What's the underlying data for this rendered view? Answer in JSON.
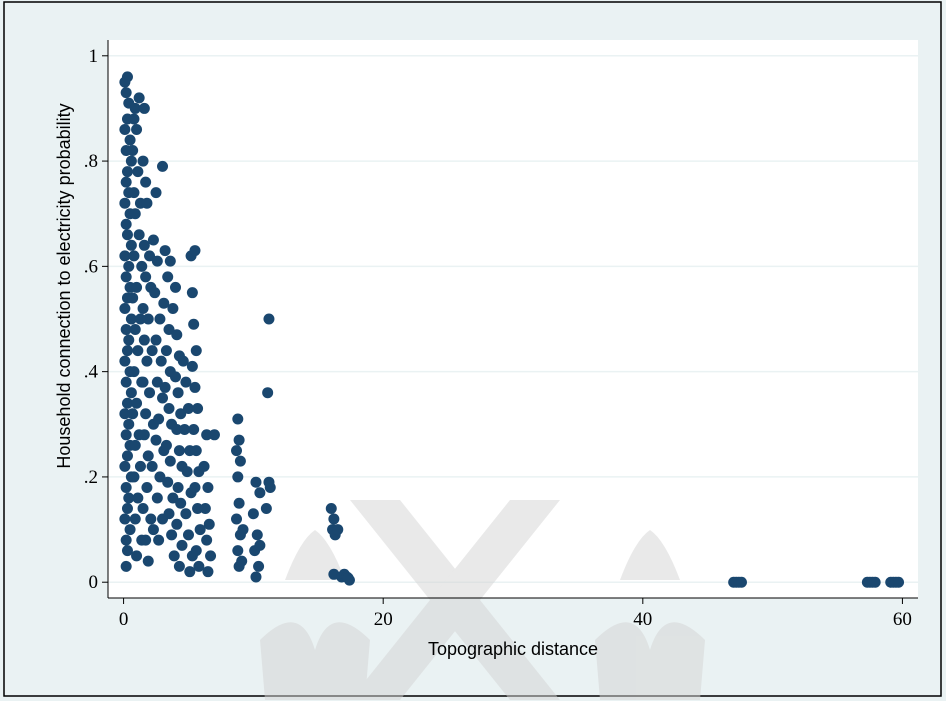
{
  "chart_data": {
    "type": "scatter",
    "title": "",
    "xlabel": "Topographic distance",
    "ylabel": "Household connection to electricity probability",
    "xlim": [
      -1.2,
      61.2
    ],
    "ylim": [
      -0.03,
      1.03
    ],
    "xticks": [
      0,
      20,
      40,
      60
    ],
    "xtick_labels": [
      "0",
      "20",
      "40",
      "60"
    ],
    "yticks": [
      0,
      0.2,
      0.4,
      0.6,
      0.8,
      1
    ],
    "ytick_labels": [
      "0",
      ".2",
      ".4",
      ".6",
      ".8",
      "1"
    ],
    "grid": true,
    "colors": {
      "marker": "#1a476f",
      "background": "#eaf2f3",
      "plot_background": "#ffffff",
      "grid": "#eaf2f3",
      "watermark": "#d4d4d4"
    },
    "points": [
      [
        0.1,
        0.95
      ],
      [
        0.2,
        0.93
      ],
      [
        0.3,
        0.96
      ],
      [
        0.4,
        0.91
      ],
      [
        0.3,
        0.88
      ],
      [
        0.1,
        0.86
      ],
      [
        0.5,
        0.84
      ],
      [
        0.2,
        0.82
      ],
      [
        0.6,
        0.8
      ],
      [
        0.3,
        0.78
      ],
      [
        0.2,
        0.76
      ],
      [
        0.4,
        0.74
      ],
      [
        0.1,
        0.72
      ],
      [
        0.5,
        0.7
      ],
      [
        0.2,
        0.68
      ],
      [
        0.3,
        0.66
      ],
      [
        0.6,
        0.64
      ],
      [
        0.1,
        0.62
      ],
      [
        0.4,
        0.6
      ],
      [
        0.2,
        0.58
      ],
      [
        0.5,
        0.56
      ],
      [
        0.3,
        0.54
      ],
      [
        0.1,
        0.52
      ],
      [
        0.6,
        0.5
      ],
      [
        0.2,
        0.48
      ],
      [
        0.4,
        0.46
      ],
      [
        0.3,
        0.44
      ],
      [
        0.1,
        0.42
      ],
      [
        0.5,
        0.4
      ],
      [
        0.2,
        0.38
      ],
      [
        0.6,
        0.36
      ],
      [
        0.3,
        0.34
      ],
      [
        0.1,
        0.32
      ],
      [
        0.4,
        0.3
      ],
      [
        0.2,
        0.28
      ],
      [
        0.5,
        0.26
      ],
      [
        0.3,
        0.24
      ],
      [
        0.1,
        0.22
      ],
      [
        0.6,
        0.2
      ],
      [
        0.2,
        0.18
      ],
      [
        0.4,
        0.16
      ],
      [
        0.3,
        0.14
      ],
      [
        0.1,
        0.12
      ],
      [
        0.5,
        0.1
      ],
      [
        0.2,
        0.08
      ],
      [
        0.3,
        0.06
      ],
      [
        0.2,
        0.03
      ],
      [
        0.8,
        0.88
      ],
      [
        0.9,
        0.9
      ],
      [
        1.2,
        0.92
      ],
      [
        1.0,
        0.86
      ],
      [
        0.7,
        0.82
      ],
      [
        1.1,
        0.78
      ],
      [
        0.8,
        0.74
      ],
      [
        1.3,
        0.72
      ],
      [
        0.9,
        0.7
      ],
      [
        1.2,
        0.66
      ],
      [
        0.8,
        0.62
      ],
      [
        1.4,
        0.6
      ],
      [
        1.0,
        0.56
      ],
      [
        0.7,
        0.54
      ],
      [
        1.3,
        0.5
      ],
      [
        0.9,
        0.48
      ],
      [
        1.1,
        0.44
      ],
      [
        0.8,
        0.4
      ],
      [
        1.4,
        0.38
      ],
      [
        1.0,
        0.34
      ],
      [
        0.7,
        0.32
      ],
      [
        1.2,
        0.28
      ],
      [
        0.9,
        0.26
      ],
      [
        1.3,
        0.22
      ],
      [
        0.8,
        0.2
      ],
      [
        1.1,
        0.16
      ],
      [
        0.9,
        0.12
      ],
      [
        1.4,
        0.08
      ],
      [
        1.0,
        0.05
      ],
      [
        1.6,
        0.9
      ],
      [
        1.7,
        0.76
      ],
      [
        1.5,
        0.8
      ],
      [
        1.8,
        0.72
      ],
      [
        1.6,
        0.64
      ],
      [
        2.0,
        0.62
      ],
      [
        1.7,
        0.58
      ],
      [
        2.1,
        0.56
      ],
      [
        1.5,
        0.52
      ],
      [
        1.9,
        0.5
      ],
      [
        1.6,
        0.46
      ],
      [
        2.2,
        0.44
      ],
      [
        1.8,
        0.42
      ],
      [
        1.5,
        0.38
      ],
      [
        2.0,
        0.36
      ],
      [
        1.7,
        0.32
      ],
      [
        2.3,
        0.3
      ],
      [
        1.6,
        0.28
      ],
      [
        1.9,
        0.24
      ],
      [
        2.2,
        0.22
      ],
      [
        1.8,
        0.18
      ],
      [
        1.5,
        0.14
      ],
      [
        2.1,
        0.12
      ],
      [
        1.7,
        0.08
      ],
      [
        1.9,
        0.04
      ],
      [
        2.3,
        0.1
      ],
      [
        2.5,
        0.74
      ],
      [
        2.3,
        0.65
      ],
      [
        2.6,
        0.61
      ],
      [
        2.4,
        0.55
      ],
      [
        2.8,
        0.5
      ],
      [
        2.5,
        0.46
      ],
      [
        2.9,
        0.42
      ],
      [
        2.6,
        0.38
      ],
      [
        3.0,
        0.35
      ],
      [
        2.7,
        0.31
      ],
      [
        2.5,
        0.27
      ],
      [
        3.1,
        0.25
      ],
      [
        2.8,
        0.2
      ],
      [
        2.6,
        0.16
      ],
      [
        3.0,
        0.12
      ],
      [
        2.7,
        0.08
      ],
      [
        3.0,
        0.79
      ],
      [
        3.2,
        0.63
      ],
      [
        3.4,
        0.58
      ],
      [
        3.1,
        0.53
      ],
      [
        3.5,
        0.48
      ],
      [
        3.3,
        0.44
      ],
      [
        3.6,
        0.4
      ],
      [
        3.2,
        0.37
      ],
      [
        3.5,
        0.33
      ],
      [
        3.7,
        0.3
      ],
      [
        3.3,
        0.26
      ],
      [
        3.6,
        0.23
      ],
      [
        3.4,
        0.19
      ],
      [
        3.8,
        0.16
      ],
      [
        3.5,
        0.13
      ],
      [
        3.7,
        0.09
      ],
      [
        3.9,
        0.05
      ],
      [
        3.6,
        0.61
      ],
      [
        4.0,
        0.56
      ],
      [
        3.8,
        0.52
      ],
      [
        4.1,
        0.47
      ],
      [
        4.3,
        0.43
      ],
      [
        4.0,
        0.39
      ],
      [
        4.2,
        0.36
      ],
      [
        4.4,
        0.32
      ],
      [
        4.1,
        0.29
      ],
      [
        4.3,
        0.25
      ],
      [
        4.5,
        0.22
      ],
      [
        4.2,
        0.18
      ],
      [
        4.4,
        0.15
      ],
      [
        4.1,
        0.11
      ],
      [
        4.5,
        0.07
      ],
      [
        4.3,
        0.03
      ],
      [
        4.6,
        0.42
      ],
      [
        4.8,
        0.38
      ],
      [
        5.0,
        0.33
      ],
      [
        4.7,
        0.29
      ],
      [
        5.1,
        0.25
      ],
      [
        4.9,
        0.21
      ],
      [
        5.2,
        0.17
      ],
      [
        4.8,
        0.13
      ],
      [
        5.0,
        0.09
      ],
      [
        5.3,
        0.05
      ],
      [
        5.1,
        0.02
      ],
      [
        5.2,
        0.62
      ],
      [
        5.5,
        0.63
      ],
      [
        5.3,
        0.55
      ],
      [
        5.4,
        0.49
      ],
      [
        5.6,
        0.44
      ],
      [
        5.3,
        0.41
      ],
      [
        5.5,
        0.37
      ],
      [
        5.7,
        0.33
      ],
      [
        5.4,
        0.29
      ],
      [
        5.6,
        0.25
      ],
      [
        5.8,
        0.21
      ],
      [
        5.5,
        0.18
      ],
      [
        5.7,
        0.14
      ],
      [
        5.9,
        0.1
      ],
      [
        5.6,
        0.06
      ],
      [
        5.8,
        0.03
      ],
      [
        6.4,
        0.28
      ],
      [
        6.2,
        0.22
      ],
      [
        6.5,
        0.18
      ],
      [
        6.3,
        0.14
      ],
      [
        6.6,
        0.11
      ],
      [
        6.4,
        0.08
      ],
      [
        6.7,
        0.05
      ],
      [
        6.5,
        0.02
      ],
      [
        7.0,
        0.28
      ],
      [
        8.8,
        0.31
      ],
      [
        8.9,
        0.27
      ],
      [
        8.7,
        0.25
      ],
      [
        9.0,
        0.23
      ],
      [
        8.8,
        0.2
      ],
      [
        8.9,
        0.15
      ],
      [
        8.7,
        0.12
      ],
      [
        9.0,
        0.09
      ],
      [
        8.8,
        0.06
      ],
      [
        8.9,
        0.03
      ],
      [
        9.2,
        0.1
      ],
      [
        9.1,
        0.04
      ],
      [
        10.2,
        0.19
      ],
      [
        10.5,
        0.17
      ],
      [
        10.0,
        0.13
      ],
      [
        10.3,
        0.09
      ],
      [
        10.1,
        0.06
      ],
      [
        10.4,
        0.03
      ],
      [
        10.2,
        0.01
      ],
      [
        10.5,
        0.07
      ],
      [
        11.2,
        0.5
      ],
      [
        11.1,
        0.36
      ],
      [
        11.3,
        0.18
      ],
      [
        11.0,
        0.14
      ],
      [
        11.2,
        0.19
      ],
      [
        16.0,
        0.14
      ],
      [
        16.2,
        0.12
      ],
      [
        16.1,
        0.1
      ],
      [
        16.3,
        0.09
      ],
      [
        16.5,
        0.1
      ],
      [
        16.2,
        0.015
      ],
      [
        16.8,
        0.01
      ],
      [
        17.0,
        0.015
      ],
      [
        17.2,
        0.01
      ],
      [
        17.4,
        0.004
      ],
      [
        17.3,
        0.008
      ],
      [
        47.0,
        0.0
      ],
      [
        47.2,
        0.0
      ],
      [
        47.4,
        0.0
      ],
      [
        47.6,
        0.0
      ],
      [
        57.3,
        0.0
      ],
      [
        57.5,
        0.0
      ],
      [
        57.7,
        0.0
      ],
      [
        57.9,
        0.0
      ],
      [
        59.1,
        0.0
      ],
      [
        59.3,
        0.0
      ],
      [
        59.5,
        0.0
      ],
      [
        59.7,
        0.0
      ]
    ]
  }
}
